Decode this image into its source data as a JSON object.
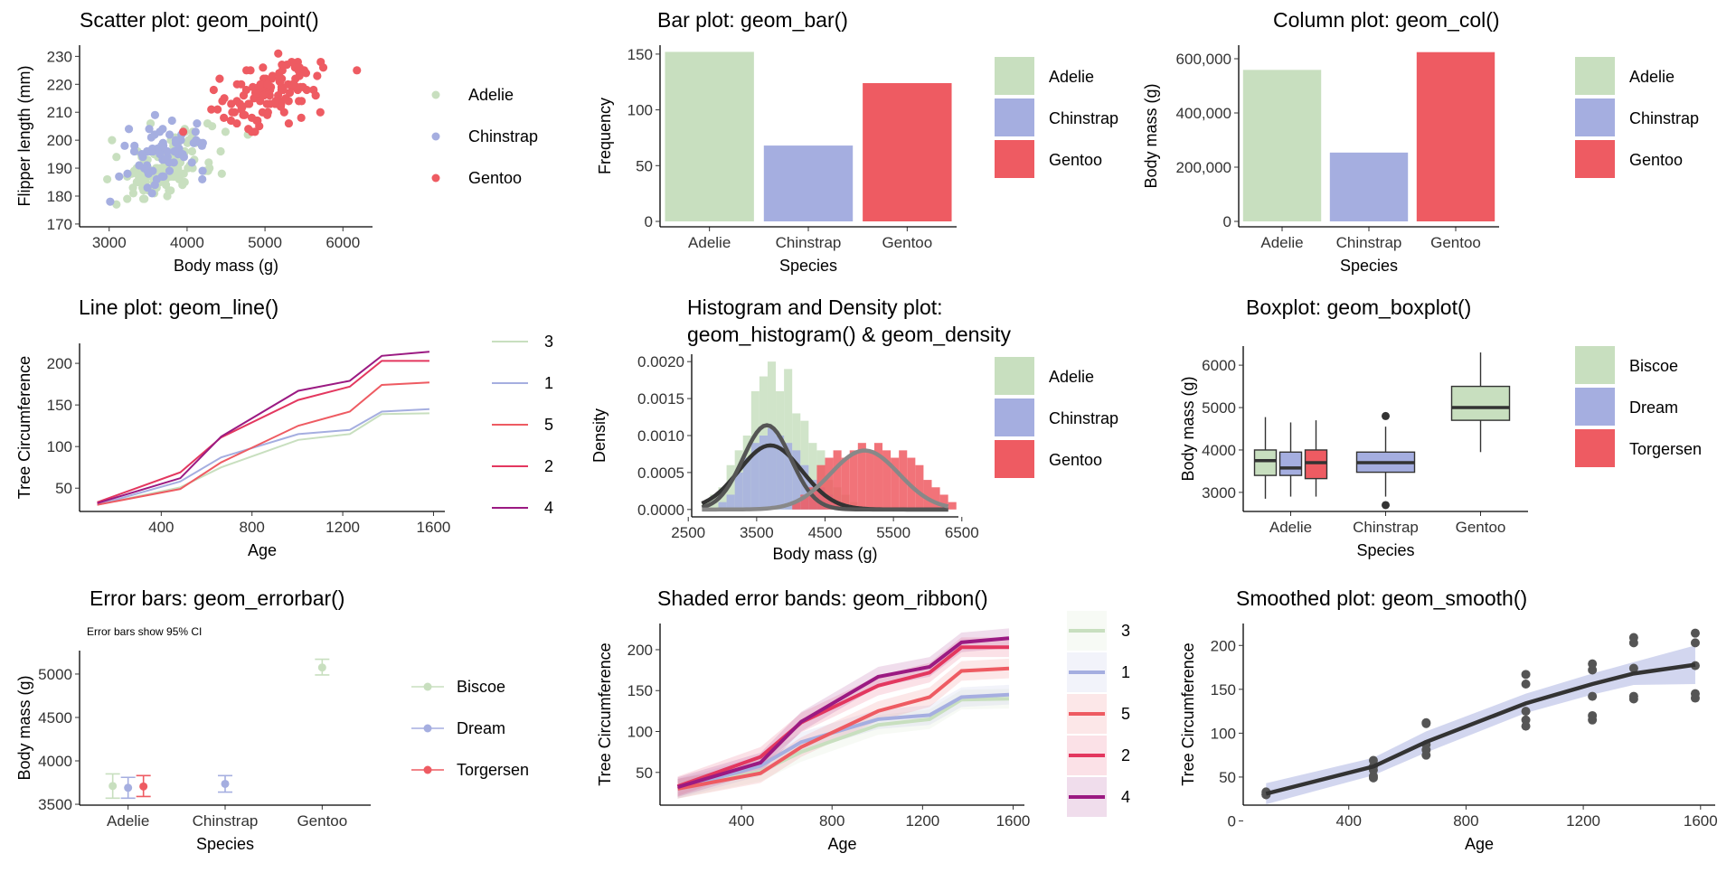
{
  "palette": {
    "green": "#c8dfbf",
    "blue": "#a5aee0",
    "red": "#ee5b62",
    "crimson": "#e3375f",
    "purple": "#9b1a82",
    "dark": "#333333",
    "gray": "#888888"
  },
  "icons": [
    "legend-key-point",
    "legend-key-rect",
    "legend-key-line",
    "legend-key-errorbar"
  ],
  "chart_data": [
    {
      "id": "scatter",
      "type": "scatter",
      "title": "Scatter plot: geom_point()",
      "xlabel": "Body mass (g)",
      "ylabel": "Flipper length (mm)",
      "xlim": [
        2620,
        6380
      ],
      "ylim": [
        169,
        234
      ],
      "xticks": [
        3000,
        4000,
        5000,
        6000
      ],
      "yticks": [
        170,
        180,
        190,
        200,
        210,
        220,
        230
      ],
      "legend": {
        "placement": "right",
        "entries": [
          "Adelie",
          "Chinstrap",
          "Gentoo"
        ]
      },
      "series": [
        {
          "name": "Adelie",
          "color": "#c8dfbf",
          "n": 151,
          "center": [
            3700,
            190
          ],
          "spread": [
            460,
            6.5
          ],
          "range": [
            2850,
            4780,
            172,
            210
          ]
        },
        {
          "name": "Chinstrap",
          "color": "#a5aee0",
          "n": 68,
          "center": [
            3733,
            196
          ],
          "spread": [
            380,
            7
          ],
          "range": [
            2700,
            4800,
            178,
            212
          ]
        },
        {
          "name": "Gentoo",
          "color": "#ee5b62",
          "n": 123,
          "center": [
            5076,
            217
          ],
          "spread": [
            500,
            6.5
          ],
          "range": [
            3950,
            6300,
            203,
            231
          ]
        }
      ]
    },
    {
      "id": "bar",
      "type": "bar",
      "title": "Bar plot: geom_bar()",
      "xlabel": "Species",
      "ylabel": "Frequency",
      "ylim": [
        0,
        158
      ],
      "yticks": [
        0,
        50,
        100,
        150
      ],
      "categories": [
        "Adelie",
        "Chinstrap",
        "Gentoo"
      ],
      "values": [
        152,
        68,
        124
      ],
      "colors": [
        "#c8dfbf",
        "#a5aee0",
        "#ee5b62"
      ],
      "legend": {
        "placement": "right",
        "entries": [
          "Adelie",
          "Chinstrap",
          "Gentoo"
        ]
      }
    },
    {
      "id": "col",
      "type": "bar",
      "title": "Column plot: geom_col()",
      "xlabel": "Species",
      "ylabel": "Body mass (g)",
      "ylim": [
        0,
        650000
      ],
      "yticks": [
        0,
        200000,
        400000,
        600000
      ],
      "yticklabels": [
        "0",
        "200,000",
        "400,000",
        "600,000"
      ],
      "categories": [
        "Adelie",
        "Chinstrap",
        "Gentoo"
      ],
      "values": [
        558800,
        253850,
        624350
      ],
      "colors": [
        "#c8dfbf",
        "#a5aee0",
        "#ee5b62"
      ],
      "legend": {
        "placement": "right",
        "entries": [
          "Adelie",
          "Chinstrap",
          "Gentoo"
        ]
      }
    },
    {
      "id": "line",
      "type": "line",
      "title": "Line plot: geom_line()",
      "xlabel": "Age",
      "ylabel": "Tree Circumference",
      "xlim": [
        40,
        1650
      ],
      "ylim": [
        22,
        224
      ],
      "xticks": [
        400,
        800,
        1200,
        1600
      ],
      "yticks": [
        50,
        100,
        150,
        200
      ],
      "x": [
        118,
        484,
        664,
        1004,
        1231,
        1372,
        1582
      ],
      "legend": {
        "placement": "right",
        "entries": [
          "3",
          "1",
          "5",
          "2",
          "4"
        ]
      },
      "series": [
        {
          "name": "3",
          "color": "#c8dfbf",
          "values": [
            30,
            51,
            75,
            108,
            115,
            139,
            140
          ]
        },
        {
          "name": "1",
          "color": "#a5aee0",
          "values": [
            30,
            58,
            87,
            115,
            120,
            142,
            145
          ]
        },
        {
          "name": "5",
          "color": "#ee5b62",
          "values": [
            30,
            49,
            81,
            125,
            142,
            174,
            177
          ]
        },
        {
          "name": "2",
          "color": "#e3375f",
          "values": [
            33,
            69,
            111,
            156,
            172,
            203,
            203
          ]
        },
        {
          "name": "4",
          "color": "#9b1a82",
          "values": [
            32,
            62,
            112,
            167,
            179,
            209,
            214
          ]
        }
      ]
    },
    {
      "id": "hist",
      "type": "bar",
      "title": "Histogram and Density plot:",
      "title2": " geom_histogram() & geom_density",
      "xlabel": "Body mass (g)",
      "ylabel": "Density",
      "xlim": [
        2550,
        6450
      ],
      "ylim": [
        -0.0001,
        0.0021
      ],
      "xticks": [
        2500,
        3500,
        4500,
        5500,
        6500
      ],
      "yticks": [
        0,
        0.0005,
        0.001,
        0.0015,
        0.002
      ],
      "yticklabels": [
        "0.0000",
        "0.0005",
        "0.0010",
        "0.0015",
        "0.0020"
      ],
      "bin_start": 2700,
      "bin_width": 120,
      "legend": {
        "placement": "right",
        "entries": [
          "Adelie",
          "Chinstrap",
          "Gentoo"
        ]
      },
      "series": [
        {
          "name": "Adelie",
          "color": "#c8dfbf",
          "values": [
            0.0001,
            0.0002,
            0.0003,
            0.0006,
            0.0008,
            0.001,
            0.0016,
            0.0018,
            0.002,
            0.0016,
            0.0019,
            0.0013,
            0.0012,
            0.0009,
            0.0008,
            0.0004,
            0.0003,
            0.0002,
            0.0001
          ]
        },
        {
          "name": "Chinstrap",
          "color": "#a5aee0",
          "values": [
            0.0,
            0.0,
            0.0001,
            0.0002,
            0.0005,
            0.0007,
            0.0009,
            0.001,
            0.0011,
            0.001,
            0.0009,
            0.0008,
            0.0006,
            0.0004,
            0.0003,
            0.0002,
            0.0001
          ]
        },
        {
          "name": "Gentoo",
          "color": "#ee5b62",
          "values": [
            0,
            0,
            0,
            0,
            0,
            0,
            0,
            0,
            0,
            0,
            0,
            0.0001,
            0.0002,
            0.0003,
            0.0006,
            0.0007,
            0.0008,
            0.0007,
            0.0008,
            0.0009,
            0.0008,
            0.0009,
            0.0008,
            0.0007,
            0.0008,
            0.0007,
            0.0006,
            0.0004,
            0.0003,
            0.0002,
            0.0001
          ]
        }
      ],
      "densities": [
        {
          "name": "Adelie",
          "color": "#333333",
          "mean": 3700,
          "sd": 460,
          "scale": 1.0
        },
        {
          "name": "Chinstrap",
          "color": "#555555",
          "mean": 3650,
          "sd": 350,
          "scale": 1.0
        },
        {
          "name": "Gentoo",
          "color": "#888888",
          "mean": 5080,
          "sd": 500,
          "scale": 1.0
        }
      ]
    },
    {
      "id": "box",
      "type": "box",
      "title": "Boxplot: geom_boxplot()",
      "xlabel": "Species",
      "ylabel": "Body mass (g)",
      "ylim": [
        2550,
        6450
      ],
      "yticks": [
        3000,
        4000,
        5000,
        6000
      ],
      "categories": [
        "Adelie",
        "Chinstrap",
        "Gentoo"
      ],
      "legend": {
        "placement": "right",
        "entries": [
          "Biscoe",
          "Dream",
          "Torgersen"
        ]
      },
      "boxes": [
        {
          "cat": 0,
          "group": "Biscoe",
          "color": "#c8dfbf",
          "min": 2850,
          "q1": 3400,
          "med": 3750,
          "q3": 4000,
          "max": 4775,
          "outliers": []
        },
        {
          "cat": 0,
          "group": "Dream",
          "color": "#a5aee0",
          "min": 2900,
          "q1": 3400,
          "med": 3575,
          "q3": 3950,
          "max": 4650,
          "outliers": []
        },
        {
          "cat": 0,
          "group": "Torgersen",
          "color": "#ee5b62",
          "min": 2900,
          "q1": 3325,
          "med": 3700,
          "q3": 4000,
          "max": 4700,
          "outliers": []
        },
        {
          "cat": 1,
          "group": "Dream",
          "color": "#a5aee0",
          "min": 2900,
          "q1": 3475,
          "med": 3700,
          "q3": 3950,
          "max": 4550,
          "outliers": [
            4800,
            2700
          ]
        },
        {
          "cat": 2,
          "group": "Biscoe",
          "color": "#c8dfbf",
          "min": 3950,
          "q1": 4700,
          "med": 5000,
          "q3": 5500,
          "max": 6300,
          "outliers": []
        }
      ]
    },
    {
      "id": "errorbar",
      "type": "scatter",
      "title": "Error bars: geom_errorbar()",
      "subtitle": "Error bars show 95% CI",
      "xlabel": "Species",
      "ylabel": "Body mass (g)",
      "ylim": [
        3490,
        5270
      ],
      "yticks": [
        3500,
        4000,
        4500,
        5000
      ],
      "categories": [
        "Adelie",
        "Chinstrap",
        "Gentoo"
      ],
      "legend": {
        "placement": "right",
        "entries": [
          "Biscoe",
          "Dream",
          "Torgersen"
        ]
      },
      "points": [
        {
          "cat": 0,
          "group": "Biscoe",
          "color": "#c8dfbf",
          "mean": 3710,
          "lo": 3570,
          "hi": 3850
        },
        {
          "cat": 0,
          "group": "Dream",
          "color": "#a5aee0",
          "mean": 3690,
          "lo": 3570,
          "hi": 3810
        },
        {
          "cat": 0,
          "group": "Torgersen",
          "color": "#ee5b62",
          "mean": 3705,
          "lo": 3590,
          "hi": 3830
        },
        {
          "cat": 1,
          "group": "Dream",
          "color": "#a5aee0",
          "mean": 3735,
          "lo": 3640,
          "hi": 3830
        },
        {
          "cat": 2,
          "group": "Biscoe",
          "color": "#c8dfbf",
          "mean": 5075,
          "lo": 4990,
          "hi": 5170
        }
      ]
    },
    {
      "id": "ribbon",
      "type": "area",
      "title": "Shaded error bands: geom_ribbon()",
      "xlabel": "Age",
      "ylabel": "Tree Circumference",
      "xlim": [
        40,
        1650
      ],
      "ylim": [
        10,
        232
      ],
      "xticks": [
        400,
        800,
        1200,
        1600
      ],
      "yticks": [
        50,
        100,
        150,
        200
      ],
      "x": [
        118,
        484,
        664,
        1004,
        1231,
        1372,
        1582
      ],
      "band": 12,
      "legend": {
        "placement": "right",
        "entries": [
          "3",
          "1",
          "5",
          "2",
          "4"
        ]
      },
      "series": [
        {
          "name": "3",
          "color": "#c8dfbf",
          "values": [
            30,
            51,
            75,
            108,
            115,
            139,
            140
          ]
        },
        {
          "name": "1",
          "color": "#a5aee0",
          "values": [
            30,
            58,
            87,
            115,
            120,
            142,
            145
          ]
        },
        {
          "name": "5",
          "color": "#ee5b62",
          "values": [
            30,
            49,
            81,
            125,
            142,
            174,
            177
          ]
        },
        {
          "name": "2",
          "color": "#e3375f",
          "values": [
            33,
            69,
            111,
            156,
            172,
            203,
            203
          ]
        },
        {
          "name": "4",
          "color": "#9b1a82",
          "values": [
            32,
            62,
            112,
            167,
            179,
            209,
            214
          ]
        }
      ]
    },
    {
      "id": "smooth",
      "type": "scatter",
      "title": "Smoothed plot: geom_smooth()",
      "xlabel": "Age",
      "ylabel": "Tree Circumference",
      "xlim": [
        40,
        1650
      ],
      "ylim": [
        18,
        225
      ],
      "xticks": [
        400,
        800,
        1200,
        1600
      ],
      "yticks": [
        0,
        50,
        100,
        150,
        200
      ],
      "x": [
        118,
        484,
        664,
        1004,
        1231,
        1372,
        1582
      ],
      "point_values": [
        [
          30,
          30,
          30,
          33,
          32
        ],
        [
          51,
          58,
          49,
          69,
          62
        ],
        [
          75,
          87,
          81,
          111,
          112
        ],
        [
          108,
          115,
          125,
          156,
          167
        ],
        [
          115,
          120,
          142,
          172,
          179
        ],
        [
          139,
          142,
          174,
          203,
          209
        ],
        [
          140,
          145,
          177,
          203,
          214
        ]
      ],
      "fit": [
        31,
        62,
        90,
        134,
        156,
        168,
        178
      ],
      "fit_se": [
        12,
        10,
        12,
        11,
        12,
        13,
        22
      ]
    }
  ]
}
